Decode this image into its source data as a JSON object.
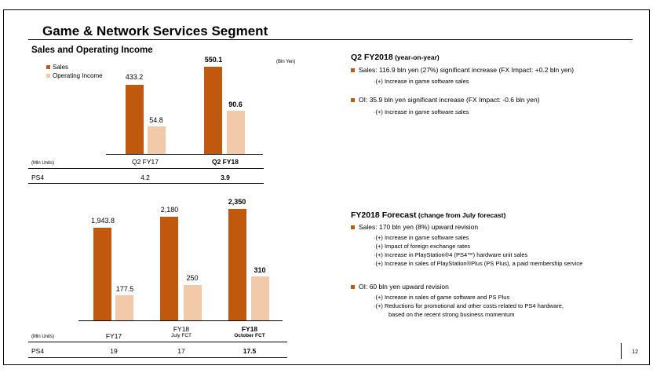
{
  "title": "Game & Network Services Segment",
  "left": {
    "subtitle": "Sales and Operating Income",
    "unit_bln_yen": "(Bln Yen)",
    "legend": {
      "sales": "Sales",
      "oi": "Operating Income"
    },
    "chart1": {
      "categories": [
        "Q2 FY17",
        "Q2 FY18"
      ],
      "sales": [
        "433.2",
        "550.1"
      ],
      "oi": [
        "54.8",
        "90.6"
      ]
    },
    "table1": {
      "unit": "(Mln Units)",
      "label": "PS4",
      "values": [
        "4.2",
        "3.9"
      ]
    },
    "chart2": {
      "categories": [
        "FY17",
        "FY18",
        "FY18"
      ],
      "subcategories": [
        "",
        "July FCT",
        "October FCT"
      ],
      "sales": [
        "1,943.8",
        "2,180",
        "2,350"
      ],
      "oi": [
        "177.5",
        "250",
        "310"
      ]
    },
    "table2": {
      "unit": "(Mln Units)",
      "label": "PS4",
      "values": [
        "19",
        "17",
        "17.5"
      ]
    }
  },
  "chart_data": [
    {
      "type": "bar",
      "categories": [
        "Q2 FY17",
        "Q2 FY18"
      ],
      "series": [
        {
          "name": "Sales",
          "values": [
            433.2,
            550.1
          ]
        },
        {
          "name": "Operating Income",
          "values": [
            54.8,
            90.6
          ]
        }
      ],
      "ylabel": "(Bln Yen)"
    },
    {
      "type": "bar",
      "categories": [
        "FY17",
        "FY18 July FCT",
        "FY18 October FCT"
      ],
      "series": [
        {
          "name": "Sales",
          "values": [
            1943.8,
            2180,
            2350
          ]
        },
        {
          "name": "Operating Income",
          "values": [
            177.5,
            250,
            310
          ]
        }
      ]
    }
  ],
  "right": {
    "q2": {
      "heading": "Q2 FY2018",
      "heading_small": " (year-on-year)",
      "sales": "Sales: 116.9 bln yen (27%) significant increase (FX Impact: +0.2 bln yen)",
      "sales_sub": [
        "·(+) Increase in game software sales"
      ],
      "oi": "OI: 35.9 bln yen significant increase (FX Impact: -0.6 bln yen)",
      "oi_sub": [
        "·(+) Increase in game software sales"
      ]
    },
    "fy": {
      "heading": "FY2018 Forecast",
      "heading_small": " (change from July forecast)",
      "sales": "Sales: 170 bln yen (8%) upward revision",
      "sales_sub": [
        "·(+) Increase in game software sales",
        "·(+) Impact of foreign exchange rates",
        "·(+) Increase in PlayStation®4 (PS4™) hardware unit sales",
        "·(+) Increase in sales of PlayStation®Plus (PS Plus), a paid membership service"
      ],
      "oi": "OI: 60 bln yen upward revision",
      "oi_sub": [
        "·(+) Increase in sales of game software and PS Plus",
        "·(+) Reductions for promotional and other costs related to PS4 hardware,",
        "based on the recent strong business momentum"
      ]
    }
  },
  "page_number": "12",
  "colors": {
    "sales": "#c0580d",
    "oi": "#f2c9a9"
  }
}
